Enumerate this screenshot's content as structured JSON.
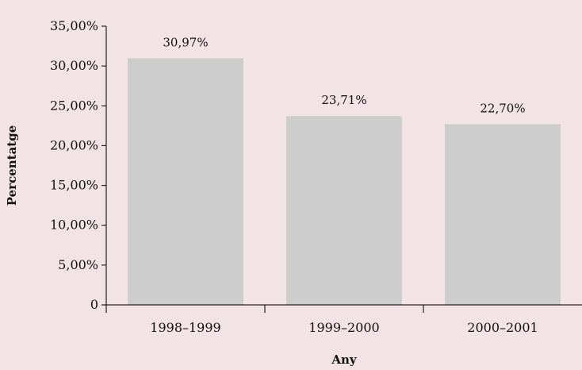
{
  "chart_data": {
    "type": "bar",
    "categories": [
      "1998–1999",
      "1999–2000",
      "2000–2001"
    ],
    "values": [
      30.97,
      23.71,
      22.7
    ],
    "data_labels": [
      "30,97%",
      "23,71%",
      "22,70%"
    ],
    "xlabel": "Any",
    "ylabel": "Percentatge",
    "ylim": [
      0,
      35
    ],
    "y_ticks": [
      0,
      5,
      10,
      15,
      20,
      25,
      30,
      35
    ],
    "y_tick_labels": [
      "0",
      "5,00%",
      "10,00%",
      "15,00%",
      "20,00%",
      "25,00%",
      "30,00%",
      "35,00%"
    ],
    "grid": false,
    "legend": "none",
    "colors": {
      "bar": "#cdcdcd",
      "background": "#f2e3e6"
    }
  }
}
